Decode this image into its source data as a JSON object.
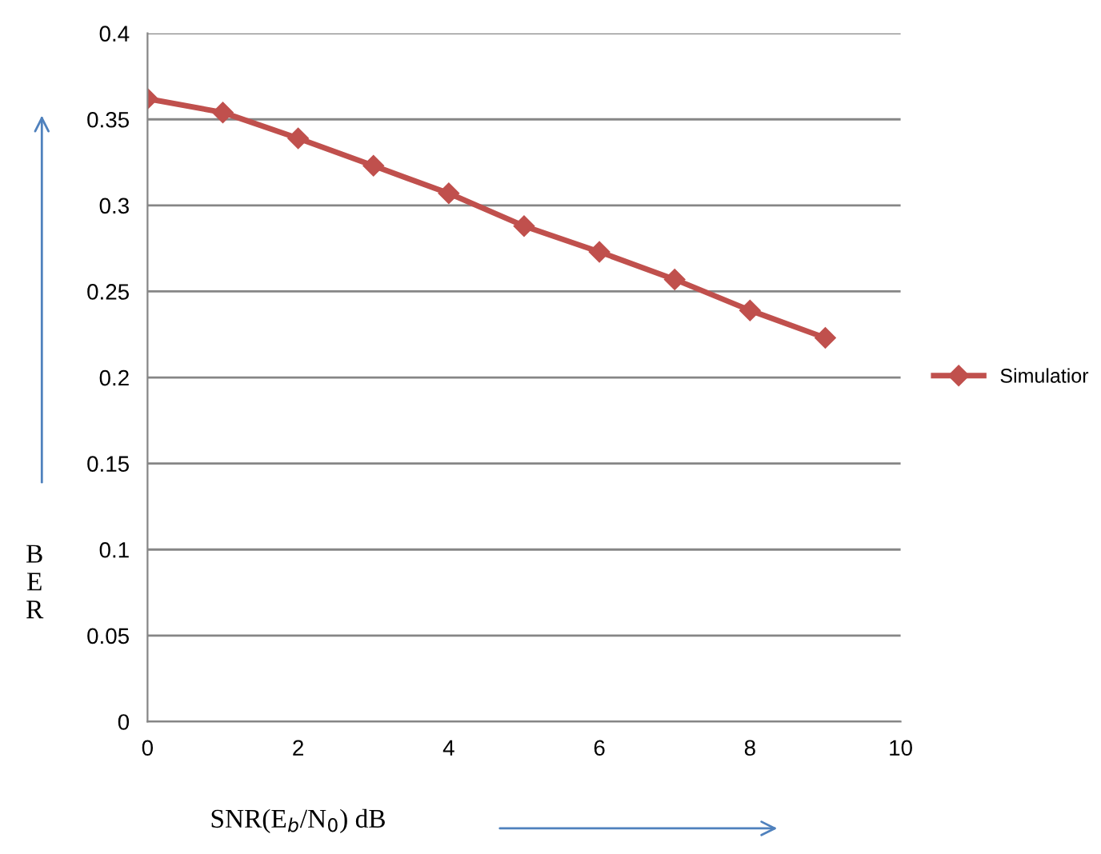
{
  "chart_data": {
    "type": "line",
    "xlabel": "SNR(E$_{b}$/N$_{0}$) dB",
    "ylabel": "BER",
    "x": [
      0,
      1,
      2,
      3,
      4,
      5,
      6,
      7,
      8,
      9
    ],
    "series": [
      {
        "name": "Simulatior",
        "color": "#c0504d",
        "values": [
          0.362,
          0.354,
          0.339,
          0.323,
          0.307,
          0.288,
          0.273,
          0.257,
          0.239,
          0.223
        ]
      }
    ],
    "xlim": [
      0,
      10
    ],
    "xticks": [
      0,
      2,
      4,
      6,
      8,
      10
    ],
    "ylim": [
      0,
      0.4
    ],
    "yticks": [
      0,
      0.05,
      0.1,
      0.15,
      0.2,
      0.25,
      0.3,
      0.35,
      0.4
    ],
    "grid": "y",
    "legend": "right",
    "marker": "diamond",
    "line_style": "solid"
  }
}
